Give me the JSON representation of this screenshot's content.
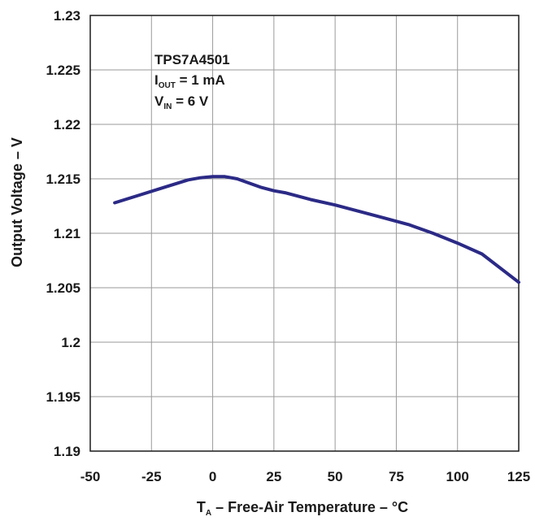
{
  "chart_data": {
    "type": "line",
    "title": "",
    "xlabel": {
      "main": "T",
      "sub": "A",
      "rest": " – Free-Air Temperature – °C"
    },
    "ylabel": "Output Voltage – V",
    "xlim": [
      -50,
      125
    ],
    "ylim": [
      1.19,
      1.23
    ],
    "xticks": [
      -50,
      -25,
      0,
      25,
      50,
      75,
      100,
      125
    ],
    "xtick_labels": [
      "-50",
      "-25",
      "0",
      "25",
      "50",
      "75",
      "100",
      "125"
    ],
    "yticks": [
      1.19,
      1.195,
      1.2,
      1.205,
      1.21,
      1.215,
      1.22,
      1.225,
      1.23
    ],
    "ytick_labels": [
      "1.19",
      "1.195",
      "1.2",
      "1.205",
      "1.21",
      "1.215",
      "1.22",
      "1.225",
      "1.23"
    ],
    "grid": true,
    "line_color": "#2b2a86",
    "annotation": {
      "device": "TPS7A4501",
      "line2": {
        "main": "I",
        "sub": "OUT",
        "rest": " = 1 mA"
      },
      "line3": {
        "main": "V",
        "sub": "IN",
        "rest": " = 6 V"
      }
    },
    "series": [
      {
        "x": [
          -40,
          -30,
          -20,
          -10,
          -5,
          0,
          5,
          10,
          15,
          20,
          25,
          30,
          40,
          50,
          60,
          70,
          80,
          90,
          100,
          110,
          125
        ],
        "y": [
          1.2128,
          1.2135,
          1.2142,
          1.2149,
          1.2151,
          1.2152,
          1.2152,
          1.215,
          1.2146,
          1.2142,
          1.2139,
          1.2137,
          1.2131,
          1.2126,
          1.212,
          1.2114,
          1.2108,
          1.21,
          1.2091,
          1.2081,
          1.2055
        ]
      }
    ]
  }
}
